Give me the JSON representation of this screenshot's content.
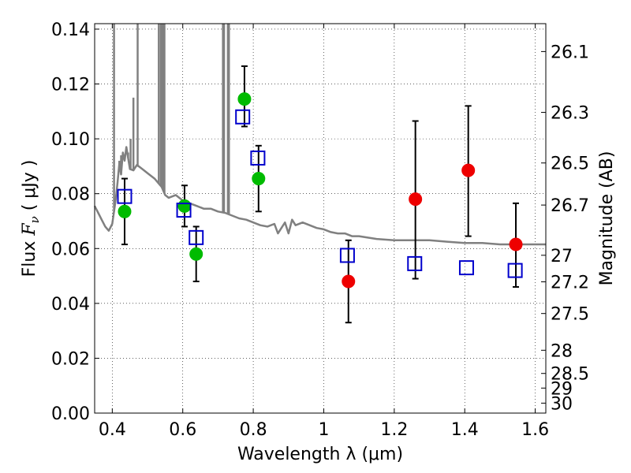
{
  "chart_data": {
    "type": "scatter",
    "xlabel": "Wavelength  λ (μm)",
    "ylabel_parts": [
      "Flux  ",
      "F",
      "ν",
      "  ( μJy )"
    ],
    "y2label": "Magnitude (AB)",
    "xlim": [
      0.35,
      1.63
    ],
    "ylim": [
      0.0,
      0.142
    ],
    "x_ticks": [
      0.4,
      0.6,
      0.8,
      1.0,
      1.2,
      1.4,
      1.6
    ],
    "x_tick_labels": [
      "0.4",
      "0.6",
      "0.8",
      "1",
      "1.2",
      "1.4",
      "1.6"
    ],
    "y_ticks": [
      0.0,
      0.02,
      0.04,
      0.06,
      0.08,
      0.1,
      0.12,
      0.14
    ],
    "y_tick_labels": [
      "0.00",
      "0.02",
      "0.04",
      "0.06",
      "0.08",
      "0.10",
      "0.12",
      "0.14"
    ],
    "y2_ticks": [
      {
        "label": "26.1",
        "mag": 26.1
      },
      {
        "label": "26.3",
        "mag": 26.3
      },
      {
        "label": "26.5",
        "mag": 26.5
      },
      {
        "label": "26.7",
        "mag": 26.7
      },
      {
        "label": "27",
        "mag": 27.0
      },
      {
        "label": "27.2",
        "mag": 27.2
      },
      {
        "label": "27.5",
        "mag": 27.5
      },
      {
        "label": "28",
        "mag": 28.0
      },
      {
        "label": "28.5",
        "mag": 28.5
      },
      {
        "label": "29",
        "mag": 29.0
      },
      {
        "label": "30",
        "mag": 30.0
      }
    ],
    "grid": true,
    "colors": {
      "model_line": "#808080",
      "green_points": "#00bb00",
      "red_points": "#ee0000",
      "squares": "#0000cc",
      "errorbars": "#000000"
    },
    "series": [
      {
        "name": "model_sed",
        "kind": "line",
        "x": [
          0.35,
          0.36,
          0.37,
          0.38,
          0.39,
          0.4,
          0.41,
          0.415,
          0.42,
          0.425,
          0.43,
          0.435,
          0.44,
          0.45,
          0.46,
          0.47,
          0.48,
          0.49,
          0.5,
          0.51,
          0.52,
          0.53,
          0.54,
          0.55,
          0.56,
          0.58,
          0.6,
          0.62,
          0.64,
          0.66,
          0.68,
          0.7,
          0.72,
          0.74,
          0.76,
          0.78,
          0.8,
          0.82,
          0.84,
          0.86,
          0.87,
          0.88,
          0.89,
          0.9,
          0.91,
          0.92,
          0.94,
          0.96,
          0.98,
          1.0,
          1.02,
          1.04,
          1.06,
          1.08,
          1.1,
          1.15,
          1.2,
          1.25,
          1.3,
          1.35,
          1.4,
          1.45,
          1.5,
          1.55,
          1.6,
          1.63
        ],
        "y": [
          0.0755,
          0.073,
          0.0705,
          0.068,
          0.0665,
          0.069,
          0.078,
          0.084,
          0.091,
          0.087,
          0.095,
          0.092,
          0.097,
          0.089,
          0.0885,
          0.0905,
          0.0895,
          0.0885,
          0.0875,
          0.0865,
          0.0855,
          0.084,
          0.0825,
          0.0795,
          0.0785,
          0.0795,
          0.0775,
          0.0765,
          0.0755,
          0.0745,
          0.0745,
          0.0735,
          0.073,
          0.072,
          0.071,
          0.0705,
          0.0695,
          0.0685,
          0.068,
          0.069,
          0.0655,
          0.0675,
          0.0695,
          0.0655,
          0.0705,
          0.0685,
          0.0695,
          0.0685,
          0.0675,
          0.067,
          0.066,
          0.0655,
          0.0655,
          0.0645,
          0.0645,
          0.0635,
          0.063,
          0.063,
          0.063,
          0.0625,
          0.062,
          0.062,
          0.0615,
          0.0615,
          0.0615,
          0.0615
        ]
      },
      {
        "name": "emission_lines",
        "kind": "spikes",
        "x": [
          0.405,
          0.472,
          0.532,
          0.538,
          0.54,
          0.545,
          0.548,
          0.714,
          0.717,
          0.728,
          0.731
        ],
        "y": [
          0.142,
          0.142,
          0.142,
          0.142,
          0.142,
          0.142,
          0.142,
          0.142,
          0.142,
          0.142,
          0.142
        ]
      },
      {
        "name": "absorption_spikes",
        "kind": "spikes",
        "x": [
          0.42,
          0.425,
          0.432,
          0.44,
          0.445,
          0.452,
          0.46
        ],
        "y": [
          0.092,
          0.094,
          0.093,
          0.096,
          0.095,
          0.1,
          0.115
        ]
      },
      {
        "name": "green_photometry",
        "kind": "scatter_errorbar",
        "marker": "circle",
        "x": [
          0.435,
          0.605,
          0.638,
          0.775,
          0.815
        ],
        "y": [
          0.0735,
          0.0755,
          0.058,
          0.1145,
          0.0855
        ],
        "yerr_low": [
          0.0615,
          0.068,
          0.048,
          0.1045,
          0.0735
        ],
        "yerr_high": [
          0.0855,
          0.083,
          0.068,
          0.1265,
          0.0975
        ]
      },
      {
        "name": "red_photometry",
        "kind": "scatter_errorbar",
        "marker": "circle",
        "x": [
          1.07,
          1.26,
          1.41,
          1.545
        ],
        "y": [
          0.048,
          0.078,
          0.0885,
          0.0615
        ],
        "yerr_low": [
          0.033,
          0.049,
          0.0645,
          0.046
        ],
        "yerr_high": [
          0.063,
          0.1065,
          0.112,
          0.0765
        ]
      },
      {
        "name": "model_photometry",
        "kind": "scatter",
        "marker": "square",
        "x": [
          0.435,
          0.603,
          0.638,
          0.77,
          0.813,
          1.067,
          1.258,
          1.405,
          1.543
        ],
        "y": [
          0.079,
          0.074,
          0.064,
          0.108,
          0.093,
          0.0575,
          0.0545,
          0.053,
          0.052
        ]
      }
    ]
  }
}
